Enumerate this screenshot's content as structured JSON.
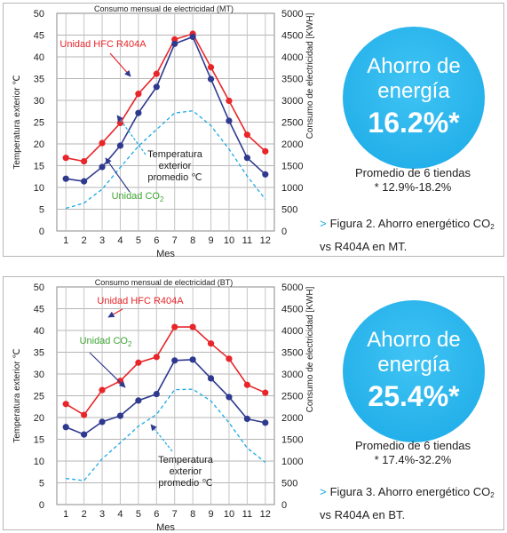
{
  "panels": [
    {
      "id": "mt",
      "circle": {
        "line1": "Ahorro de",
        "line2": "energía",
        "value": "16.2%*"
      },
      "average": {
        "line1": "Promedio de 6 tiendas",
        "line2": "* 12.9%-18.2%"
      },
      "caption": {
        "prefix": "Figura 2. Ahorro energético CO",
        "sub": "2",
        "line2": "vs R404A en MT."
      }
    },
    {
      "id": "bt",
      "circle": {
        "line1": "Ahorro de",
        "line2": "energía",
        "value": "25.4%*"
      },
      "average": {
        "line1": "Promedio de 6 tiendas",
        "line2": "* 17.4%-32.2%"
      },
      "caption": {
        "prefix": "Figura 3. Ahorro energético CO",
        "sub": "2",
        "line2": "vs R404A en BT."
      }
    }
  ],
  "chart_data": [
    {
      "type": "line",
      "title": "Consumo mensual de electricidad (MT)",
      "xlabel": "Mes",
      "ylabel_left": "Temperatura exterior ℃",
      "ylabel_right": "Consumo de electricidad [KWH]",
      "ylim_left": [
        0,
        50
      ],
      "ylim_right": [
        0,
        5000
      ],
      "grid": true,
      "x": [
        1,
        2,
        3,
        4,
        5,
        6,
        7,
        8,
        9,
        10,
        11,
        12
      ],
      "left_ticks": [
        0,
        5,
        10,
        15,
        20,
        25,
        30,
        35,
        40,
        45,
        50
      ],
      "right_ticks": [
        0,
        500,
        1000,
        1500,
        2000,
        2500,
        3000,
        3500,
        4000,
        4500,
        5000
      ],
      "series": [
        {
          "name": "Unidad HFC R404A",
          "axis": "right",
          "color": "#e8262a",
          "style": "solid",
          "values": [
            1680,
            1600,
            2020,
            2480,
            3150,
            3610,
            4400,
            4530,
            3760,
            2990,
            2210,
            1830
          ]
        },
        {
          "name": "Unidad CO2",
          "axis": "right",
          "color": "#2f3a8f",
          "style": "solid",
          "values": [
            1200,
            1140,
            1470,
            1960,
            2710,
            3310,
            4300,
            4460,
            3490,
            2530,
            1680,
            1300
          ]
        },
        {
          "name": "Temperatura exterior promedio ℃",
          "axis": "left",
          "color": "#1aa9e6",
          "style": "dashed",
          "values": [
            5.2,
            6.4,
            9.6,
            14.6,
            19.5,
            23.3,
            27.1,
            27.6,
            24.2,
            18.8,
            12.6,
            7.3
          ]
        }
      ],
      "annotations": [
        {
          "text": "Unidad HFC R404A",
          "color": "#e8262a"
        },
        {
          "text": "Temperatura",
          "color": "#222222"
        },
        {
          "text": "exterior",
          "color": "#222222"
        },
        {
          "text": "promedio ℃",
          "color": "#222222"
        },
        {
          "text": "Unidad CO",
          "sub": "2",
          "color": "#3fa535"
        }
      ]
    },
    {
      "type": "line",
      "title": "Consumo mensual de electricidad (BT)",
      "xlabel": "Mes",
      "ylabel_left": "Temperatura exterior ℃",
      "ylabel_right": "Consumo de electricidad [KWH]",
      "ylim_left": [
        0,
        50
      ],
      "ylim_right": [
        0,
        5000
      ],
      "grid": true,
      "x": [
        1,
        2,
        3,
        4,
        5,
        6,
        7,
        8,
        9,
        10,
        11,
        12
      ],
      "left_ticks": [
        0,
        5,
        10,
        15,
        20,
        25,
        30,
        35,
        40,
        45,
        50
      ],
      "right_ticks": [
        0,
        500,
        1000,
        1500,
        2000,
        2500,
        3000,
        3500,
        4000,
        4500,
        5000
      ],
      "series": [
        {
          "name": "Unidad HFC R404A",
          "axis": "right",
          "color": "#e8262a",
          "style": "solid",
          "values": [
            2310,
            2060,
            2630,
            2840,
            3260,
            3390,
            4080,
            4080,
            3700,
            3350,
            2750,
            2570
          ]
        },
        {
          "name": "Unidad CO2",
          "axis": "right",
          "color": "#2f3a8f",
          "style": "solid",
          "values": [
            1780,
            1610,
            1900,
            2040,
            2390,
            2540,
            3310,
            3330,
            2900,
            2470,
            1970,
            1880
          ]
        },
        {
          "name": "Temperatura exterior promedio ℃",
          "axis": "left",
          "color": "#1aa9e6",
          "style": "dashed",
          "values": [
            6.0,
            5.5,
            10.5,
            14.2,
            18.0,
            20.7,
            26.4,
            26.5,
            23.8,
            18.8,
            13.0,
            9.7
          ]
        }
      ],
      "annotations": [
        {
          "text": "Unidad HFC R404A",
          "color": "#e8262a"
        },
        {
          "text": "Unidad CO",
          "sub": "2",
          "color": "#3fa535"
        },
        {
          "text": "Temperatura",
          "color": "#222222"
        },
        {
          "text": "exterior",
          "color": "#222222"
        },
        {
          "text": "promedio ℃",
          "color": "#222222"
        }
      ]
    }
  ]
}
